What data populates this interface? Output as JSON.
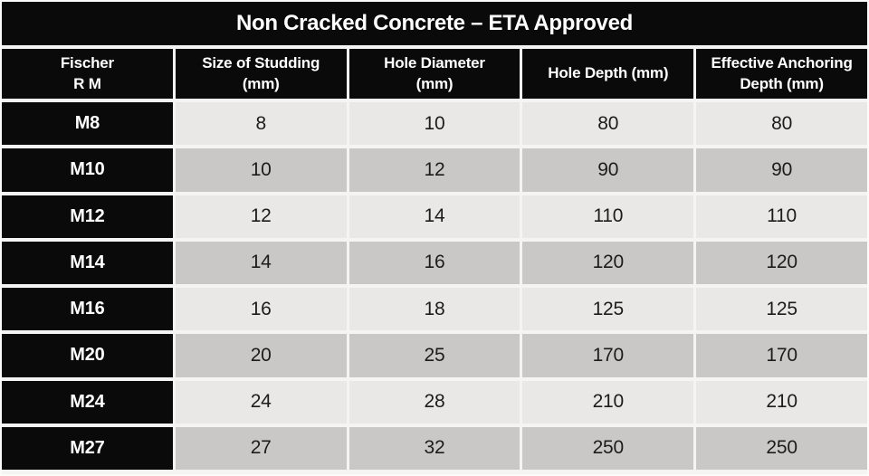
{
  "title": "Non Cracked Concrete – ETA Approved",
  "table": {
    "columns": [
      {
        "line1": "Fischer",
        "line2": "R M"
      },
      {
        "line1": "Size of Studding",
        "line2": "(mm)"
      },
      {
        "line1": "Hole Diameter",
        "line2": "(mm)"
      },
      {
        "line1": "Hole Depth (mm)",
        "line2": ""
      },
      {
        "line1": "Effective Anchoring",
        "line2": "Depth (mm)"
      }
    ],
    "rows": [
      {
        "label": "M8",
        "values": [
          "8",
          "10",
          "80",
          "80"
        ]
      },
      {
        "label": "M10",
        "values": [
          "10",
          "12",
          "90",
          "90"
        ]
      },
      {
        "label": "M12",
        "values": [
          "12",
          "14",
          "110",
          "110"
        ]
      },
      {
        "label": "M14",
        "values": [
          "14",
          "16",
          "120",
          "120"
        ]
      },
      {
        "label": "M16",
        "values": [
          "16",
          "18",
          "125",
          "125"
        ]
      },
      {
        "label": "M20",
        "values": [
          "20",
          "25",
          "170",
          "170"
        ]
      },
      {
        "label": "M24",
        "values": [
          "24",
          "28",
          "210",
          "210"
        ]
      },
      {
        "label": "M27",
        "values": [
          "27",
          "32",
          "250",
          "250"
        ]
      }
    ]
  },
  "colors": {
    "header_background": "#0a0a0a",
    "header_text": "#ffffff",
    "row_light": "#e9e8e6",
    "row_dark": "#c9c8c6",
    "gridline": "#f5f4f2",
    "value_text": "#1c1c1c"
  }
}
